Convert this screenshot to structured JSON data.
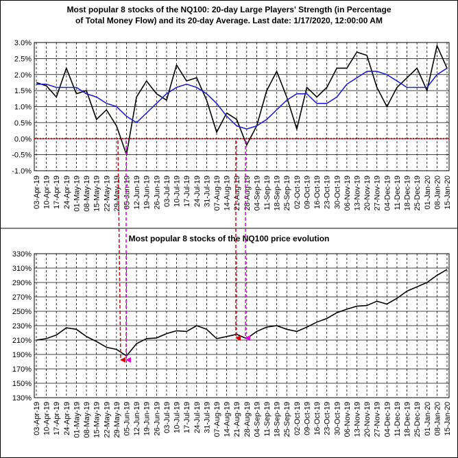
{
  "chart_data": [
    {
      "type": "line",
      "title": [
        "Most popular 8 stocks of the NQ100: 20-day Large Players' Strength (in Percentage",
        "of Total Money Flow) and its 20-day Average. Last date: 1/17/2020, 12:00:00 AM"
      ],
      "categories": [
        "03-Apr-19",
        "10-Apr-19",
        "17-Apr-19",
        "24-Apr-19",
        "01-May-19",
        "08-May-19",
        "15-May-19",
        "22-May-19",
        "29-May-19",
        "05-Jun-19",
        "12-Jun-19",
        "19-Jun-19",
        "26-Jun-19",
        "03-Jul-19",
        "10-Jul-19",
        "17-Jul-19",
        "24-Jul-19",
        "31-Jul-19",
        "07-Aug-19",
        "14-Aug-19",
        "21-Aug-19",
        "28-Aug-19",
        "04-Sep-19",
        "11-Sep-19",
        "18-Sep-19",
        "25-Sep-19",
        "02-Oct-19",
        "09-Oct-19",
        "16-Oct-19",
        "23-Oct-19",
        "30-Oct-19",
        "06-Nov-19",
        "13-Nov-19",
        "20-Nov-19",
        "27-Nov-19",
        "04-Dec-19",
        "11-Dec-19",
        "18-Dec-19",
        "25-Dec-19",
        "01-Jan-20",
        "08-Jan-20",
        "15-Jan-20"
      ],
      "series": [
        {
          "color": "#000000",
          "values": [
            1.75,
            1.65,
            1.3,
            2.2,
            1.4,
            1.5,
            0.6,
            0.9,
            0.4,
            -0.5,
            1.3,
            1.8,
            1.4,
            1.2,
            2.3,
            1.8,
            1.9,
            1.2,
            0.2,
            0.8,
            0.6,
            -0.2,
            0.4,
            1.5,
            2.1,
            1.3,
            0.3,
            1.6,
            1.3,
            1.6,
            2.2,
            2.2,
            2.7,
            2.6,
            1.6,
            1.0,
            1.6,
            1.9,
            2.2,
            1.5,
            2.9,
            2.2
          ]
        },
        {
          "color": "#2020d0",
          "values": [
            1.7,
            1.7,
            1.6,
            1.6,
            1.6,
            1.4,
            1.3,
            1.1,
            1.0,
            0.7,
            0.5,
            0.8,
            1.1,
            1.4,
            1.6,
            1.7,
            1.6,
            1.4,
            1.1,
            0.7,
            0.4,
            0.3,
            0.4,
            0.6,
            0.9,
            1.2,
            1.4,
            1.4,
            1.1,
            1.1,
            1.3,
            1.7,
            1.9,
            2.1,
            2.1,
            2.0,
            1.8,
            1.6,
            1.6,
            1.6,
            2.0,
            2.2
          ]
        }
      ],
      "ylim": [
        -1,
        3
      ],
      "yticks": [
        {
          "value": -1,
          "label": "-1.0%"
        },
        {
          "value": -0.5,
          "label": "-0.5%"
        },
        {
          "value": 0,
          "label": "0.0%"
        },
        {
          "value": 0.5,
          "label": "0.5%"
        },
        {
          "value": 1,
          "label": "1.0%"
        },
        {
          "value": 1.5,
          "label": "1.5%"
        },
        {
          "value": 2,
          "label": "2.0%"
        },
        {
          "value": 2.5,
          "label": "2.5%"
        },
        {
          "value": 3,
          "label": "3.0%"
        }
      ],
      "grid": true,
      "reference_line": {
        "value": 0,
        "color": "#cc0000"
      }
    },
    {
      "type": "line",
      "title": [
        "Most popular 8 stocks of the NQ100 price evolution"
      ],
      "categories": [
        "03-Apr-19",
        "10-Apr-19",
        "17-Apr-19",
        "24-Apr-19",
        "01-May-19",
        "08-May-19",
        "15-May-19",
        "22-May-19",
        "29-May-19",
        "05-Jun-19",
        "12-Jun-19",
        "19-Jun-19",
        "26-Jun-19",
        "03-Jul-19",
        "10-Jul-19",
        "17-Jul-19",
        "24-Jul-19",
        "31-Jul-19",
        "07-Aug-19",
        "14-Aug-19",
        "21-Aug-19",
        "28-Aug-19",
        "04-Sep-19",
        "11-Sep-19",
        "18-Sep-19",
        "25-Sep-19",
        "02-Oct-19",
        "09-Oct-19",
        "16-Oct-19",
        "23-Oct-19",
        "30-Oct-19",
        "06-Nov-19",
        "13-Nov-19",
        "20-Nov-19",
        "27-Nov-19",
        "04-Dec-19",
        "11-Dec-19",
        "18-Dec-19",
        "25-Dec-19",
        "01-Jan-20",
        "08-Jan-20",
        "15-Jan-20"
      ],
      "series": [
        {
          "color": "#000000",
          "values": [
            210,
            212,
            217,
            227,
            225,
            215,
            208,
            200,
            197,
            188,
            205,
            212,
            213,
            219,
            223,
            222,
            230,
            225,
            212,
            215,
            218,
            212,
            222,
            228,
            230,
            225,
            222,
            228,
            235,
            240,
            248,
            253,
            257,
            258,
            264,
            260,
            268,
            278,
            284,
            290,
            300,
            308
          ]
        }
      ],
      "ylim": [
        130,
        330
      ],
      "yticks": [
        {
          "value": 130,
          "label": "130%"
        },
        {
          "value": 150,
          "label": "150%"
        },
        {
          "value": 170,
          "label": "170%"
        },
        {
          "value": 190,
          "label": "190%"
        },
        {
          "value": 210,
          "label": "210%"
        },
        {
          "value": 230,
          "label": "230%"
        },
        {
          "value": 250,
          "label": "250%"
        },
        {
          "value": 270,
          "label": "270%"
        },
        {
          "value": 290,
          "label": "290%"
        },
        {
          "value": 310,
          "label": "310%"
        },
        {
          "value": 330,
          "label": "330%"
        }
      ],
      "grid": true
    }
  ]
}
